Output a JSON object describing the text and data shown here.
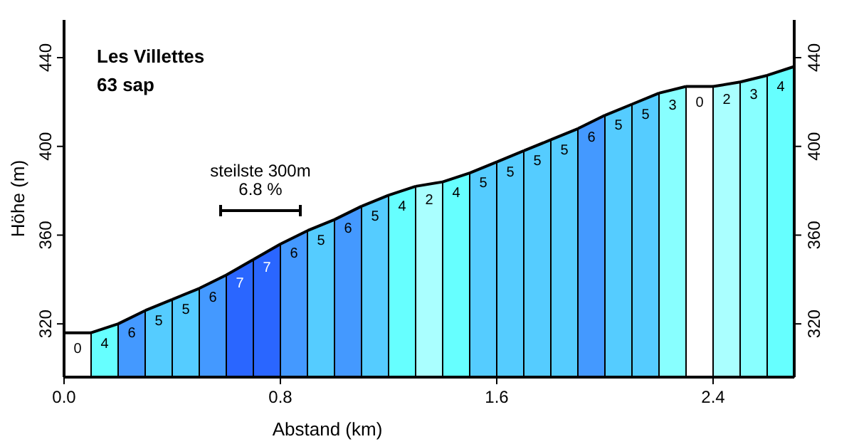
{
  "chart_data": {
    "type": "area",
    "title": "Les Villettes",
    "subtitle": "63 sap",
    "xlabel": "Abstand (km)",
    "ylabel": "Höhe (m)",
    "series": [
      {
        "color": "#ffffff",
        "x": [
          0,
          0.1
        ],
        "values": [
          316,
          316
        ]
      },
      {
        "color": "#66ffff",
        "x": [
          0.1,
          0.2
        ],
        "values": [
          316,
          320
        ]
      },
      {
        "color": "#4499ff",
        "x": [
          0.2,
          0.3
        ],
        "values": [
          320,
          326
        ]
      },
      {
        "color": "#55ccff",
        "x": [
          0.3,
          0.4
        ],
        "values": [
          326,
          331
        ]
      },
      {
        "color": "#55ccff",
        "x": [
          0.4,
          0.5
        ],
        "values": [
          331,
          336
        ]
      },
      {
        "color": "#4499ff",
        "x": [
          0.5,
          0.6
        ],
        "values": [
          336,
          342
        ]
      },
      {
        "color": "#2a66ff",
        "x": [
          0.6,
          0.7
        ],
        "values": [
          342,
          349
        ]
      },
      {
        "color": "#2a66ff",
        "x": [
          0.7,
          0.8
        ],
        "values": [
          349,
          356
        ]
      },
      {
        "color": "#4499ff",
        "x": [
          0.8,
          0.9
        ],
        "values": [
          356,
          362
        ]
      },
      {
        "color": "#55ccff",
        "x": [
          0.9,
          1.0
        ],
        "values": [
          362,
          367
        ]
      },
      {
        "color": "#4499ff",
        "x": [
          1.0,
          1.1
        ],
        "values": [
          367,
          373
        ]
      },
      {
        "color": "#55ccff",
        "x": [
          1.1,
          1.2
        ],
        "values": [
          373,
          378
        ]
      },
      {
        "color": "#66ffff",
        "x": [
          1.2,
          1.3
        ],
        "values": [
          378,
          382
        ]
      },
      {
        "color": "#aaffff",
        "x": [
          1.3,
          1.4
        ],
        "values": [
          382,
          384
        ]
      },
      {
        "color": "#66ffff",
        "x": [
          1.4,
          1.5
        ],
        "values": [
          384,
          388
        ]
      },
      {
        "color": "#55ccff",
        "x": [
          1.5,
          1.6
        ],
        "values": [
          388,
          393
        ]
      },
      {
        "color": "#55ccff",
        "x": [
          1.6,
          1.7
        ],
        "values": [
          393,
          398
        ]
      },
      {
        "color": "#55ccff",
        "x": [
          1.7,
          1.8
        ],
        "values": [
          398,
          403
        ]
      },
      {
        "color": "#55ccff",
        "x": [
          1.8,
          1.9
        ],
        "values": [
          403,
          408
        ]
      },
      {
        "color": "#4499ff",
        "x": [
          1.9,
          2.0
        ],
        "values": [
          408,
          414
        ]
      },
      {
        "color": "#55ccff",
        "x": [
          2.0,
          2.1
        ],
        "values": [
          414,
          419
        ]
      },
      {
        "color": "#55ccff",
        "x": [
          2.1,
          2.2
        ],
        "values": [
          419,
          424
        ]
      },
      {
        "color": "#88ffff",
        "x": [
          2.2,
          2.3
        ],
        "values": [
          424,
          427
        ]
      },
      {
        "color": "#ffffff",
        "x": [
          2.3,
          2.4
        ],
        "values": [
          427,
          427
        ]
      },
      {
        "color": "#aaffff",
        "x": [
          2.4,
          2.5
        ],
        "values": [
          427,
          429
        ]
      },
      {
        "color": "#88ffff",
        "x": [
          2.5,
          2.6
        ],
        "values": [
          429,
          432
        ]
      },
      {
        "color": "#66ffff",
        "x": [
          2.6,
          2.7
        ],
        "values": [
          432,
          436
        ]
      }
    ],
    "annotations": [
      {
        "text": "0",
        "x": 0.05,
        "y": 316
      },
      {
        "text": "4",
        "x": 0.15,
        "y": 318
      },
      {
        "text": "6",
        "x": 0.25,
        "y": 323
      },
      {
        "text": "5",
        "x": 0.35,
        "y": 328.5
      },
      {
        "text": "5",
        "x": 0.45,
        "y": 333.5
      },
      {
        "text": "6",
        "x": 0.55,
        "y": 339
      },
      {
        "text": "7",
        "x": 0.65,
        "y": 345.5
      },
      {
        "text": "7",
        "x": 0.75,
        "y": 352.5
      },
      {
        "text": "6",
        "x": 0.85,
        "y": 359
      },
      {
        "text": "5",
        "x": 0.95,
        "y": 364.5
      },
      {
        "text": "6",
        "x": 1.05,
        "y": 370
      },
      {
        "text": "5",
        "x": 1.15,
        "y": 375.5
      },
      {
        "text": "4",
        "x": 1.25,
        "y": 380
      },
      {
        "text": "2",
        "x": 1.35,
        "y": 383
      },
      {
        "text": "4",
        "x": 1.45,
        "y": 386
      },
      {
        "text": "5",
        "x": 1.55,
        "y": 390.5
      },
      {
        "text": "5",
        "x": 1.65,
        "y": 395.5
      },
      {
        "text": "5",
        "x": 1.75,
        "y": 400.5
      },
      {
        "text": "5",
        "x": 1.85,
        "y": 405.5
      },
      {
        "text": "6",
        "x": 1.95,
        "y": 411
      },
      {
        "text": "5",
        "x": 2.05,
        "y": 416.5
      },
      {
        "text": "5",
        "x": 2.15,
        "y": 421.5
      },
      {
        "text": "3",
        "x": 2.25,
        "y": 425.5
      },
      {
        "text": "0",
        "x": 2.35,
        "y": 427
      },
      {
        "text": "2",
        "x": 2.45,
        "y": 428
      },
      {
        "text": "3",
        "x": 2.55,
        "y": 430.5
      },
      {
        "text": "4",
        "x": 2.65,
        "y": 434
      },
      "steilste 300m\n6.8 %"
    ],
    "xlim": [
      0,
      2.7
    ],
    "xticks": [
      {
        "value": 0,
        "label": "0.0"
      },
      0.8,
      1.6,
      2.4
    ],
    "ylim": [
      296,
      457
    ],
    "yticks": [
      320,
      360,
      400,
      440
    ],
    "y2lim": [
      296,
      457
    ],
    "y2ticks": [
      320,
      360,
      400,
      440
    ]
  }
}
